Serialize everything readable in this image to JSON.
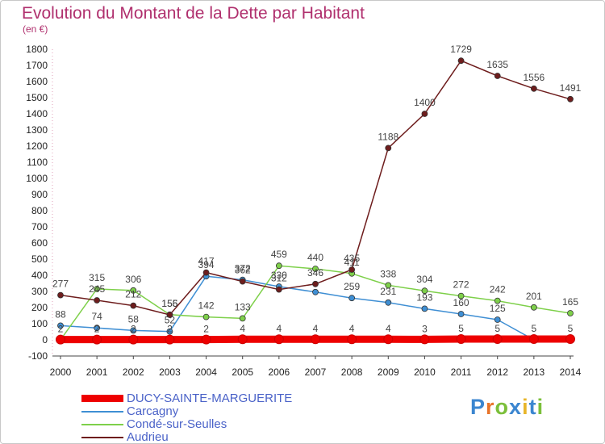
{
  "header": {
    "title": "Evolution du Montant de la Dette par Habitant",
    "unit": "(en €)"
  },
  "logo": {
    "letters": [
      "P",
      "r",
      "o",
      "x",
      "i",
      "t",
      "i"
    ],
    "colors": [
      "#3b86d0",
      "#e8742a",
      "#7bbf3a",
      "#3b86d0",
      "#e8b52a",
      "#3b86d0",
      "#7bbf3a"
    ]
  },
  "chart_data": {
    "type": "line",
    "title": "Evolution du Montant de la Dette par Habitant",
    "ylabel": "(en €)",
    "xlabel": "",
    "x": [
      "2000",
      "2001",
      "2002",
      "2003",
      "2004",
      "2005",
      "2006",
      "2007",
      "2008",
      "2009",
      "2010",
      "2011",
      "2012",
      "2013",
      "2014"
    ],
    "ylim": [
      -100,
      1800
    ],
    "yticks": [
      -100,
      0,
      100,
      200,
      300,
      400,
      500,
      600,
      700,
      800,
      900,
      1000,
      1100,
      1200,
      1300,
      1400,
      1500,
      1600,
      1700,
      1800
    ],
    "grid": false,
    "legend_position": "bottom-left",
    "series": [
      {
        "name": "DUCY-SAINTE-MARGUERITE",
        "color": "#ee0000",
        "values": [
          2,
          2,
          2,
          2,
          2,
          4,
          4,
          4,
          4,
          4,
          3,
          5,
          5,
          5,
          5
        ],
        "labels": [
          "2",
          "2",
          "2",
          "2",
          "2",
          "4",
          "4",
          "4",
          "4",
          "4",
          "3",
          "5",
          "5",
          "5",
          "5"
        ]
      },
      {
        "name": "Carcagny",
        "color": "#3f8fd4",
        "values": [
          88,
          74,
          58,
          52,
          394,
          372,
          330,
          296,
          259,
          231,
          193,
          160,
          125,
          0,
          0
        ],
        "labels": [
          "88",
          "74",
          "58",
          "52",
          "394",
          "372",
          "330",
          "",
          "259",
          "231",
          "193",
          "160",
          "125",
          "",
          ""
        ]
      },
      {
        "name": "Condé-sur-Seulles",
        "color": "#7ed04a",
        "values": [
          0,
          315,
          306,
          156,
          142,
          133,
          459,
          440,
          411,
          338,
          304,
          272,
          242,
          201,
          165
        ],
        "labels": [
          "",
          "315",
          "306",
          "156",
          "142",
          "133",
          "459",
          "440",
          "411",
          "338",
          "304",
          "272",
          "242",
          "201",
          "165"
        ]
      },
      {
        "name": "Audrieu",
        "color": "#6e1d1d",
        "values": [
          277,
          245,
          212,
          155,
          417,
          362,
          312,
          346,
          435,
          1188,
          1400,
          1729,
          1635,
          1556,
          1491
        ],
        "labels": [
          "277",
          "245",
          "212",
          "155",
          "417",
          "362",
          "312",
          "346",
          "435",
          "1188",
          "1400",
          "1729",
          "1635",
          "1556",
          "1491"
        ]
      }
    ]
  }
}
